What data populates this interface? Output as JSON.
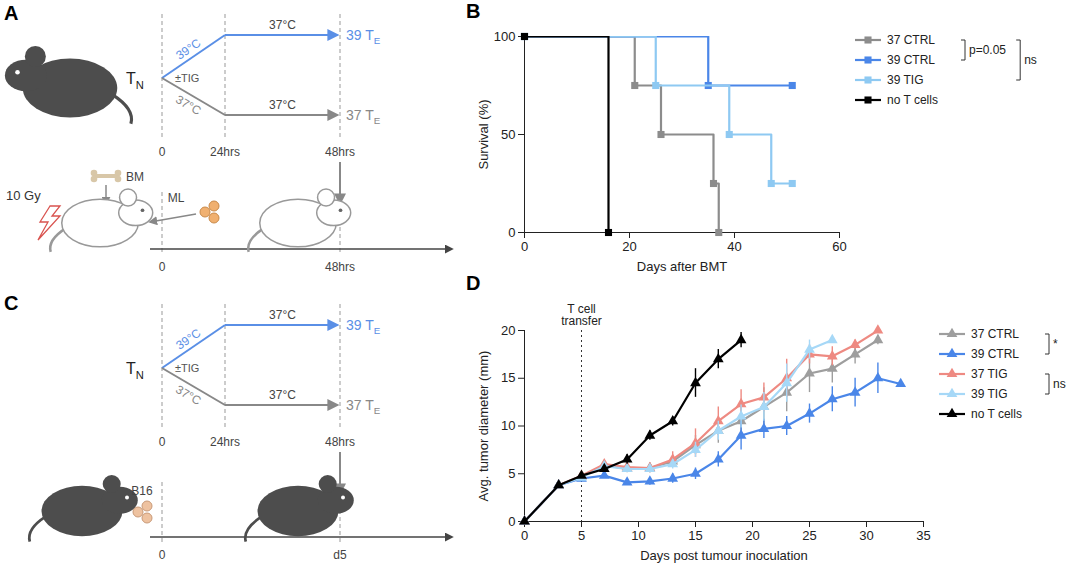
{
  "diagrams": [
    {
      "panel": "A",
      "donor_cells": [
        "T",
        "N"
      ],
      "heat_temp": "39°C",
      "control_temp": "37°C",
      "rest_temp_heated": "37°C",
      "rest_temp_control": "37°C",
      "treatment": "±TIG",
      "heated_effector": [
        "39 T",
        "E"
      ],
      "control_effector": [
        "37 T",
        "E"
      ],
      "culture_times": [
        "0",
        "24hrs",
        "48hrs"
      ],
      "irradiation": "10 Gy",
      "bone_marrow": "BM",
      "leukaemia": "ML",
      "recipient_times": [
        "0",
        "48hrs"
      ]
    },
    {
      "panel": "C",
      "donor_cells": [
        "T",
        "N"
      ],
      "heat_temp": "39°C",
      "control_temp": "37°C",
      "rest_temp_heated": "37°C",
      "rest_temp_control": "37°C",
      "treatment": "±TIG",
      "heated_effector": [
        "39 T",
        "E"
      ],
      "control_effector": [
        "37 T",
        "E"
      ],
      "culture_times": [
        "0",
        "24hrs",
        "48hrs"
      ],
      "tumour": "B16",
      "recipient_times": [
        "0",
        "d5"
      ]
    }
  ],
  "chart_data": [
    {
      "panel": "B",
      "type": "line",
      "line_style": "step",
      "x_label": "Days after BMT",
      "y_label": "Survival (%)",
      "xlim": [
        0,
        60
      ],
      "xticks": [
        0,
        20,
        40,
        60
      ],
      "ylim": [
        0,
        100
      ],
      "yticks": [
        0,
        50,
        100
      ],
      "grid": false,
      "legend": "right",
      "series": [
        {
          "name": "37 CTRL",
          "color": "#8c8c8c",
          "marker": "square",
          "x": [
            0,
            21,
            26,
            36,
            37
          ],
          "values": [
            100,
            75,
            50,
            25,
            0
          ]
        },
        {
          "name": "39 CTRL",
          "color": "#4a86e8",
          "marker": "square",
          "x": [
            0,
            35,
            51
          ],
          "values": [
            100,
            75,
            75
          ]
        },
        {
          "name": "39 TIG",
          "color": "#8ec9f2",
          "marker": "square",
          "x": [
            0,
            25,
            39,
            47,
            51
          ],
          "values": [
            100,
            75,
            50,
            25,
            25
          ]
        },
        {
          "name": "no T cells",
          "color": "#000000",
          "marker": "square",
          "x": [
            0,
            16
          ],
          "values": [
            100,
            0
          ]
        }
      ],
      "annotations": [
        {
          "text": "p=0.05",
          "between": [
            "37 CTRL",
            "39 CTRL"
          ]
        },
        {
          "text": "ns",
          "between": [
            "37 CTRL",
            "39 TIG"
          ]
        }
      ]
    },
    {
      "panel": "D",
      "type": "line",
      "line_style": "solid",
      "x_label": "Days post tumour inoculation",
      "y_label": "Avg. tumor diameter (mm)",
      "xlim": [
        0,
        35
      ],
      "xticks": [
        0,
        5,
        10,
        15,
        20,
        25,
        30,
        35
      ],
      "ylim": [
        0,
        20
      ],
      "yticks": [
        0,
        5,
        10,
        15,
        20
      ],
      "grid": false,
      "legend": "right",
      "reference_line": {
        "x": 5,
        "label": "T cell transfer"
      },
      "series": [
        {
          "name": "37 CTRL",
          "color": "#9e9e9e",
          "marker": "triangle",
          "x": [
            0,
            3,
            5,
            7,
            9,
            11,
            13,
            15,
            17,
            19,
            21,
            23,
            25,
            27,
            29,
            31
          ],
          "values": [
            0,
            3.8,
            4.7,
            5.9,
            5.5,
            5.6,
            6.3,
            8,
            9.5,
            10.5,
            12,
            13.5,
            15.5,
            16,
            17.5,
            19
          ],
          "errors": [
            0,
            0.2,
            0.3,
            0.3,
            0.4,
            0.5,
            0.6,
            1,
            1.3,
            1.5,
            2,
            2,
            2,
            1.5,
            1,
            0.5
          ]
        },
        {
          "name": "39 CTRL",
          "color": "#4a86e8",
          "marker": "triangle",
          "x": [
            0,
            3,
            5,
            7,
            9,
            11,
            13,
            15,
            17,
            19,
            21,
            23,
            25,
            27,
            29,
            31,
            33
          ],
          "values": [
            0,
            3.8,
            4.5,
            4.8,
            4.1,
            4.2,
            4.5,
            5,
            6.5,
            9,
            9.7,
            10,
            11.3,
            12.8,
            13.5,
            15,
            14.4
          ],
          "errors": [
            0,
            0.2,
            0.3,
            0.3,
            0.3,
            0.4,
            0.5,
            0.6,
            0.8,
            1.5,
            1,
            1,
            1,
            1.3,
            1.5,
            1.6,
            0
          ]
        },
        {
          "name": "37 TIG",
          "color": "#ee8a82",
          "marker": "triangle",
          "x": [
            0,
            3,
            5,
            7,
            9,
            11,
            13,
            15,
            17,
            19,
            21,
            23,
            25,
            27,
            29,
            31
          ],
          "values": [
            0,
            3.8,
            4.8,
            6,
            5.7,
            5.6,
            6.5,
            8.2,
            10.5,
            12.3,
            13,
            15,
            17.5,
            17.3,
            18.5,
            20
          ],
          "errors": [
            0,
            0.2,
            0.3,
            0.3,
            0.4,
            0.5,
            0.8,
            1.5,
            1.5,
            1.5,
            1.5,
            2,
            1,
            1,
            0.5,
            0
          ]
        },
        {
          "name": "39 TIG",
          "color": "#a6d8f7",
          "marker": "triangle",
          "x": [
            0,
            3,
            5,
            7,
            9,
            11,
            13,
            15,
            17,
            19,
            21,
            23,
            25,
            27
          ],
          "values": [
            0,
            3.8,
            4.6,
            5.8,
            5.5,
            5.5,
            6,
            7.5,
            9.5,
            11,
            12,
            14.5,
            18,
            19
          ],
          "errors": [
            0,
            0.2,
            0.3,
            0.3,
            0.3,
            0.4,
            0.5,
            0.8,
            1,
            1.2,
            1.5,
            2,
            1,
            0
          ]
        },
        {
          "name": "no T cells",
          "color": "#000000",
          "marker": "triangle",
          "x": [
            0,
            3,
            5,
            7,
            9,
            11,
            13,
            15,
            17,
            19
          ],
          "values": [
            0,
            3.8,
            4.8,
            5.5,
            6.5,
            9,
            10.5,
            14.5,
            17,
            19
          ],
          "errors": [
            0,
            0.2,
            0.3,
            0.3,
            0.5,
            0.5,
            0.5,
            1.5,
            1,
            0.8
          ]
        }
      ],
      "annotations": [
        {
          "text": "*",
          "between": [
            "37 CTRL",
            "39 CTRL"
          ]
        },
        {
          "text": "ns",
          "between": [
            "37 TIG",
            "39 TIG"
          ]
        }
      ]
    }
  ]
}
